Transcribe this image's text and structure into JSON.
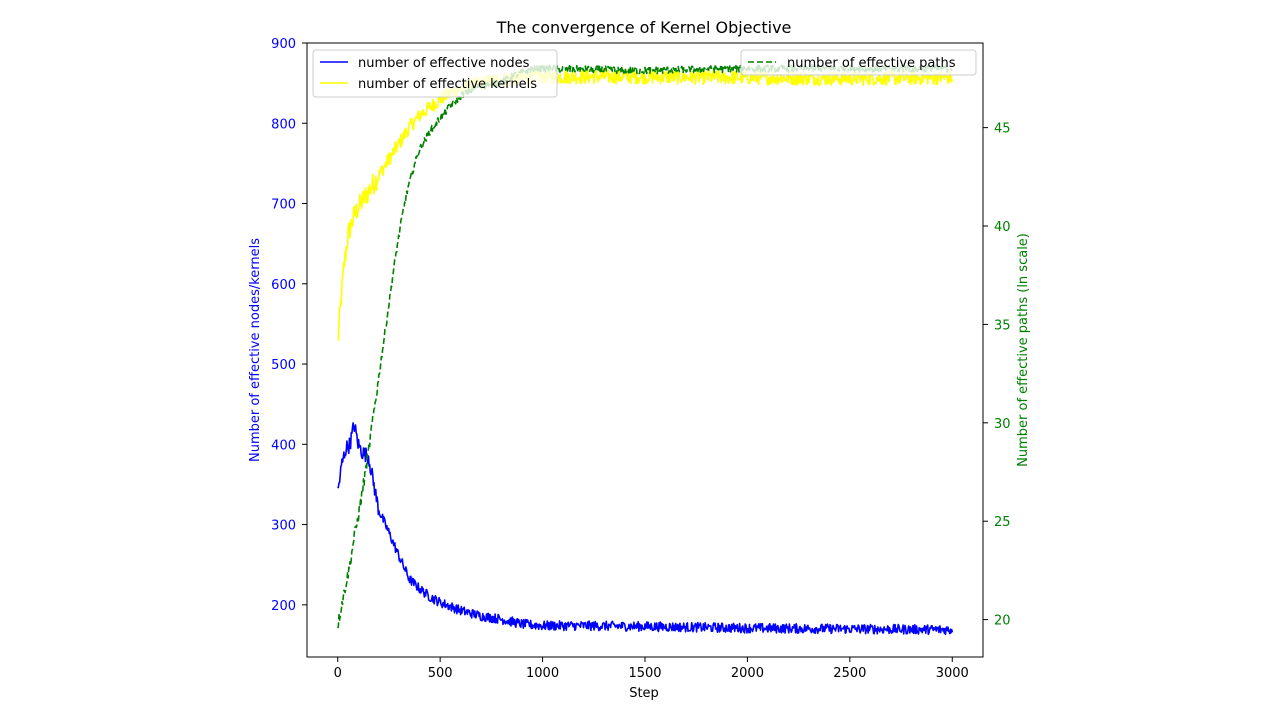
{
  "chart_data": {
    "type": "line",
    "title": "The convergence of Kernel Objective",
    "xlabel": "Step",
    "ylabel_left": "Number of effective nodes/kernels",
    "ylabel_right": "Number of effective paths (ln scale)",
    "xlim": [
      -150,
      3150
    ],
    "ylim_left": [
      135,
      900
    ],
    "ylim_right": [
      18.1,
      49.3
    ],
    "xticks": [
      0,
      500,
      1000,
      1500,
      2000,
      2500,
      3000
    ],
    "yticks_left": [
      200,
      300,
      400,
      500,
      600,
      700,
      800,
      900
    ],
    "yticks_right": [
      20,
      25,
      30,
      35,
      40,
      45
    ],
    "colors": {
      "nodes": "#0000ff",
      "kernels": "#ffff00",
      "paths": "#008000",
      "left_axis": "#0000ff",
      "right_axis": "#008000"
    },
    "legend_left": {
      "placement": "upper-left",
      "entries": [
        "number of effective nodes",
        "number of effective kernels"
      ]
    },
    "legend_right": {
      "placement": "upper-right",
      "entries": [
        "number of effective paths"
      ]
    },
    "series": [
      {
        "name": "number of effective nodes",
        "axis": "left",
        "style": "solid",
        "x": [
          0,
          20,
          40,
          60,
          80,
          100,
          120,
          150,
          180,
          200,
          250,
          300,
          350,
          400,
          450,
          500,
          600,
          700,
          800,
          900,
          1000,
          1200,
          1500,
          2000,
          2500,
          3000
        ],
        "y": [
          340,
          375,
          395,
          400,
          425,
          400,
          390,
          385,
          345,
          318,
          290,
          260,
          232,
          220,
          210,
          203,
          193,
          186,
          182,
          176,
          174,
          174,
          173,
          171,
          170,
          169
        ],
        "noise": 6
      },
      {
        "name": "number of effective kernels",
        "axis": "left",
        "style": "solid",
        "x": [
          0,
          10,
          30,
          50,
          80,
          100,
          150,
          200,
          250,
          300,
          350,
          400,
          450,
          500,
          550,
          600,
          700,
          800,
          1000,
          1500,
          2000,
          2500,
          3000
        ],
        "y": [
          525,
          560,
          620,
          660,
          685,
          695,
          715,
          735,
          755,
          775,
          795,
          810,
          820,
          830,
          838,
          843,
          850,
          855,
          858,
          858,
          857,
          856,
          857
        ],
        "noise": 9
      },
      {
        "name": "number of effective paths",
        "axis": "right",
        "style": "dashed",
        "x": [
          0,
          20,
          40,
          60,
          80,
          100,
          120,
          140,
          160,
          180,
          200,
          220,
          240,
          260,
          280,
          300,
          320,
          340,
          360,
          380,
          400,
          450,
          500,
          550,
          600,
          650,
          700,
          750,
          800,
          850,
          900,
          950,
          1000,
          1500,
          2000,
          2500,
          3000
        ],
        "y": [
          19.7,
          20.8,
          21.8,
          22.8,
          24.2,
          25.2,
          26.5,
          27.8,
          29.3,
          30.8,
          32.3,
          33.8,
          35.3,
          36.8,
          38.3,
          39.6,
          40.8,
          41.8,
          42.6,
          43.3,
          43.9,
          44.8,
          45.5,
          46.1,
          46.6,
          46.9,
          47.1,
          47.2,
          47.3,
          47.6,
          47.8,
          48.0,
          48.0,
          47.9,
          48.0,
          48.0,
          48.0
        ],
        "noise": 0.18
      }
    ]
  }
}
